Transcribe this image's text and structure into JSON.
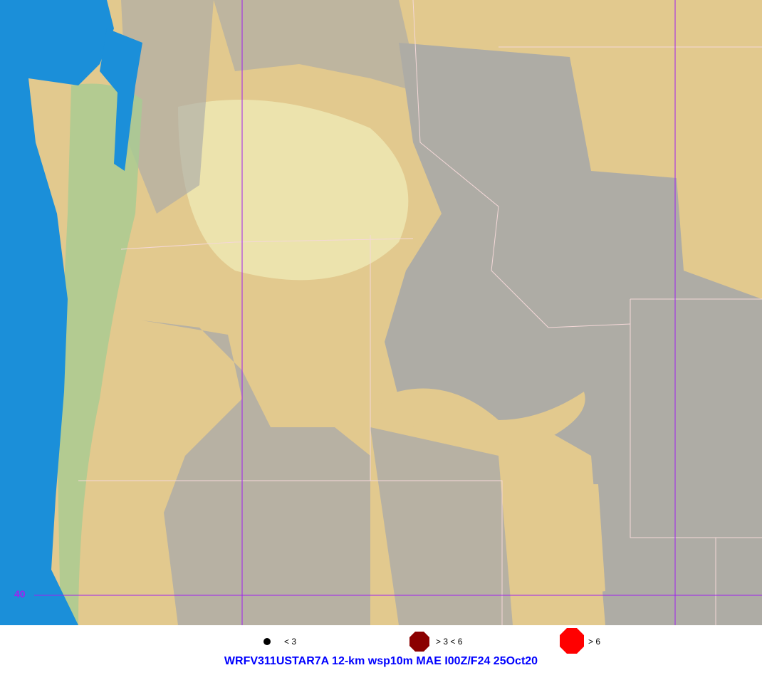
{
  "map": {
    "colors": {
      "ocean": "#1b8fd9",
      "land": "#e2c98e",
      "mountain": "#a8a8a8",
      "lowland": "#e9dfa8",
      "green": "#8fc48a",
      "grid": "#a020f0",
      "border": "#f0d0d0"
    },
    "latitude_label": "40"
  },
  "legend": {
    "items": [
      {
        "label": "< 3",
        "color": "#000000",
        "marker": "small-circle"
      },
      {
        "label": "> 3 < 6",
        "color": "#8b0000",
        "marker": "octagon"
      },
      {
        "label": "> 6",
        "color": "#ff0000",
        "marker": "octagon"
      }
    ]
  },
  "title": {
    "text": "WRFV311USTAR7A 12-km wsp10m MAE I00Z/F24 25Oct20",
    "color": "#0000ff"
  }
}
